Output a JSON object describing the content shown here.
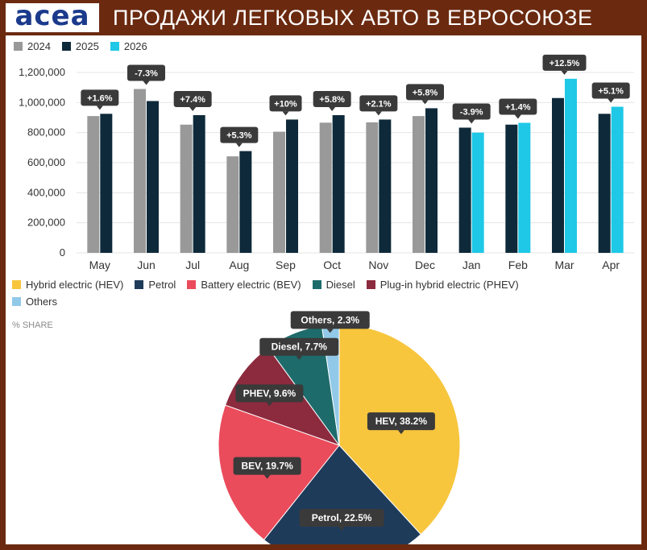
{
  "header": {
    "logo_text": "acea",
    "title": "ПРОДАЖИ ЛЕГКОВЫХ АВТО В ЕВРОСОЮЗЕ"
  },
  "colors": {
    "background": "#6b2a10",
    "year_2024": "#999999",
    "year_2025": "#0e2a3a",
    "year_2026": "#1ec8e6",
    "label_box": "#3a3a3a",
    "hev": "#f7c63d",
    "petrol": "#1f3b5a",
    "bev": "#ea4c5c",
    "diesel": "#1e6b6b",
    "phev": "#8c2a3e",
    "others": "#92c9e8"
  },
  "chart_data": [
    {
      "type": "bar",
      "title": "",
      "xlabel": "",
      "ylabel": "",
      "ylim": [
        0,
        1200000
      ],
      "yticks": [
        0,
        200000,
        400000,
        600000,
        800000,
        1000000,
        1200000
      ],
      "ytick_labels": [
        "0",
        "200,000",
        "400,000",
        "600,000",
        "800,000",
        "1,000,000",
        "1,200,000"
      ],
      "grid": true,
      "legend_position": "top-left",
      "categories": [
        "May",
        "Jun",
        "Jul",
        "Aug",
        "Sep",
        "Oct",
        "Nov",
        "Dec",
        "Jan",
        "Feb",
        "Mar",
        "Apr"
      ],
      "series": [
        {
          "name": "2024",
          "color": "#999999",
          "values": [
            910000,
            1090000,
            853000,
            642000,
            806000,
            866000,
            868000,
            910000,
            null,
            null,
            null,
            null
          ]
        },
        {
          "name": "2025",
          "color": "#0e2a3a",
          "values": [
            925000,
            1010000,
            916000,
            677000,
            887000,
            916000,
            887000,
            962000,
            833000,
            853000,
            1030000,
            925000
          ]
        },
        {
          "name": "2026",
          "color": "#1ec8e6",
          "values": [
            null,
            null,
            null,
            null,
            null,
            null,
            null,
            null,
            800000,
            865000,
            1158000,
            972000
          ]
        }
      ],
      "change_labels": [
        "+1.6%",
        "-7.3%",
        "+7.4%",
        "+5.3%",
        "+10%",
        "+5.8%",
        "+2.1%",
        "+5.8%",
        "-3.9%",
        "+1.4%",
        "+12.5%",
        "+5.1%"
      ]
    },
    {
      "type": "pie",
      "title": "",
      "subtitle": "% SHARE",
      "legend_position": "top",
      "slices": [
        {
          "name": "Hybrid electric (HEV)",
          "label": "HEV, 38.2%",
          "value": 38.2,
          "color": "#f7c63d"
        },
        {
          "name": "Petrol",
          "label": "Petrol, 22.5%",
          "value": 22.5,
          "color": "#1f3b5a"
        },
        {
          "name": "Battery electric (BEV)",
          "label": "BEV, 19.7%",
          "value": 19.7,
          "color": "#ea4c5c"
        },
        {
          "name": "Plug-in hybrid electric (PHEV)",
          "label": "PHEV, 9.6%",
          "value": 9.6,
          "color": "#8c2a3e"
        },
        {
          "name": "Diesel",
          "label": "Diesel, 7.7%",
          "value": 7.7,
          "color": "#1e6b6b"
        },
        {
          "name": "Others",
          "label": "Others, 2.3%",
          "value": 2.3,
          "color": "#92c9e8"
        }
      ]
    }
  ],
  "pie_legend": [
    {
      "label": "Hybrid electric (HEV)",
      "color": "#f7c63d"
    },
    {
      "label": "Petrol",
      "color": "#1f3b5a"
    },
    {
      "label": "Battery electric (BEV)",
      "color": "#ea4c5c"
    },
    {
      "label": "Diesel",
      "color": "#1e6b6b"
    },
    {
      "label": "Plug-in hybrid electric (PHEV)",
      "color": "#8c2a3e"
    },
    {
      "label": "Others",
      "color": "#92c9e8"
    }
  ]
}
